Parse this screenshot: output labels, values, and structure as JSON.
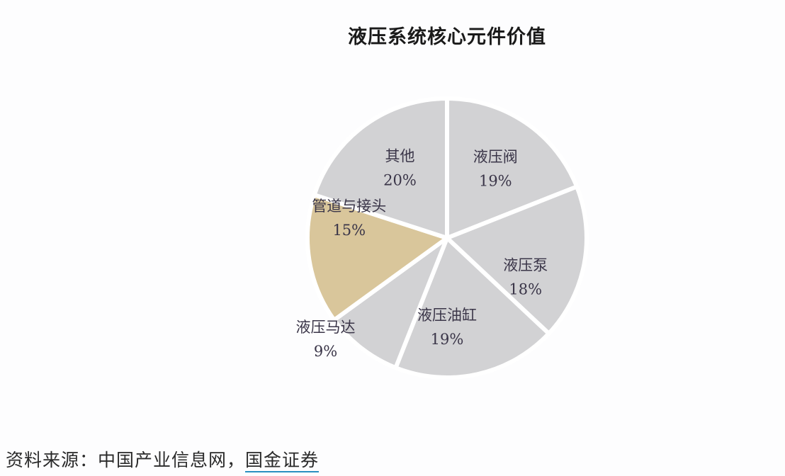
{
  "chart_data": {
    "type": "pie",
    "title": "液压系统核心元件价值",
    "start_angle_deg": 0,
    "direction": "clockwise",
    "slices": [
      {
        "label": "液压阀",
        "value": 19,
        "value_label": "19%",
        "color": "#d2d2d4"
      },
      {
        "label": "液压泵",
        "value": 18,
        "value_label": "18%",
        "color": "#d2d2d4"
      },
      {
        "label": "液压油缸",
        "value": 19,
        "value_label": "19%",
        "color": "#d2d2d4"
      },
      {
        "label": "液压马达",
        "value": 9,
        "value_label": "9%",
        "color": "#d2d2d4",
        "label_outside": true
      },
      {
        "label": "管道与接头",
        "value": 15,
        "value_label": "15%",
        "color": "#d9c69b",
        "highlighted": true
      },
      {
        "label": "其他",
        "value": 20,
        "value_label": "20%",
        "color": "#d2d2d4"
      }
    ],
    "categories": [
      "液压阀",
      "液压泵",
      "液压油缸",
      "液压马达",
      "管道与接头",
      "其他"
    ],
    "values": [
      19,
      18,
      19,
      9,
      15,
      20
    ],
    "unit": "%",
    "legend": "none"
  },
  "source": {
    "prefix": "资料来源：中国产业信息网，",
    "link": "国金证券"
  }
}
